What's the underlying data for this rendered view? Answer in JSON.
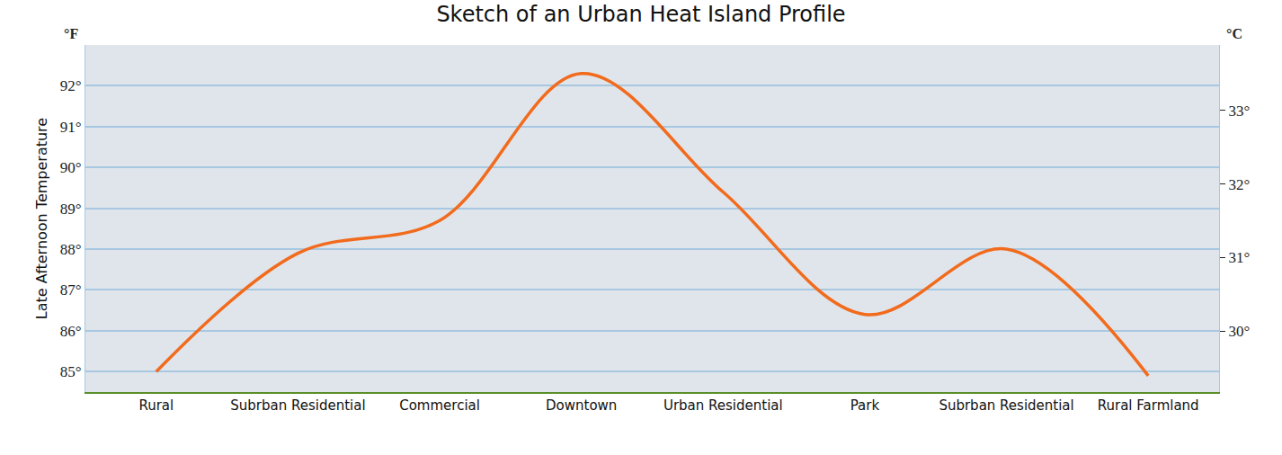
{
  "chart_data": {
    "type": "line",
    "title": "Sketch of an Urban Heat Island Profile",
    "ylabel": "Late Afternoon Temperature",
    "annotations": [
      {
        "text": "°F",
        "axis": "y"
      },
      {
        "text": "°C",
        "axis": "y2"
      }
    ],
    "categories": [
      "Rural",
      "Subrban Residential",
      "Commercial",
      "Downtown",
      "Urban Residential",
      "Park",
      "Subrban Residential",
      "Rural Farmland"
    ],
    "values": [
      85.0,
      87.9,
      88.7,
      92.3,
      89.4,
      86.4,
      88.0,
      84.9
    ],
    "color": "#f26b1d",
    "line_style": "solid",
    "grid": true,
    "ylim": [
      84.5,
      93
    ],
    "yticks": [
      {
        "value": 85,
        "label": "85°"
      },
      {
        "value": 86,
        "label": "86°"
      },
      {
        "value": 87,
        "label": "87°"
      },
      {
        "value": 88,
        "label": "88°"
      },
      {
        "value": 89,
        "label": "89°"
      },
      {
        "value": 90,
        "label": "90°"
      },
      {
        "value": 91,
        "label": "91°"
      },
      {
        "value": 92,
        "label": "92°"
      }
    ],
    "y2lim": [
      29.17,
      33.89
    ],
    "y2ticks": [
      {
        "value": 30,
        "label": "30°"
      },
      {
        "value": 31,
        "label": "31°"
      },
      {
        "value": 32,
        "label": "32°"
      },
      {
        "value": 33,
        "label": "33°"
      }
    ]
  }
}
